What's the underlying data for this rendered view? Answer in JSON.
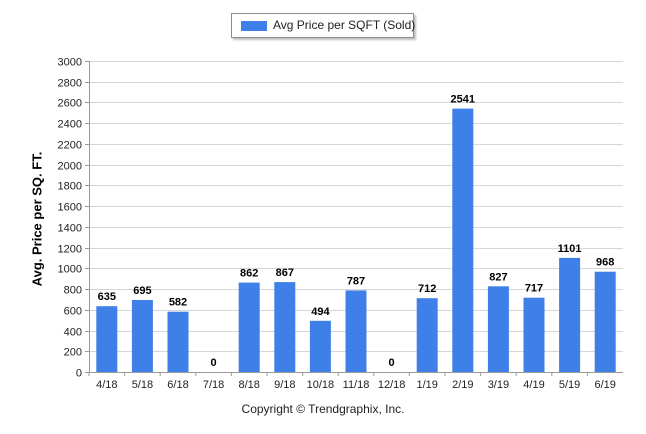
{
  "chart_data": {
    "type": "bar",
    "categories": [
      "4/18",
      "5/18",
      "6/18",
      "7/18",
      "8/18",
      "9/18",
      "10/18",
      "11/18",
      "12/18",
      "1/19",
      "2/19",
      "3/19",
      "4/19",
      "5/19",
      "6/19"
    ],
    "series": [
      {
        "name": "Avg Price per SQFT (Sold)",
        "values": [
          635,
          695,
          582,
          0,
          862,
          867,
          494,
          787,
          0,
          712,
          2541,
          827,
          717,
          1101,
          968
        ]
      }
    ],
    "ylabel": "Avg. Price per SQ. FT.",
    "xlabel": "",
    "ylim": [
      0,
      3000
    ],
    "yticks": [
      0,
      200,
      400,
      600,
      800,
      1000,
      1200,
      1400,
      1600,
      1800,
      2000,
      2200,
      2400,
      2600,
      2800,
      3000
    ],
    "grid": true,
    "legend_position": "top-center",
    "data_labels": true,
    "bar_color": "#3f7fe8"
  },
  "footer": {
    "copyright": "Copyright © Trendgraphix, Inc."
  }
}
